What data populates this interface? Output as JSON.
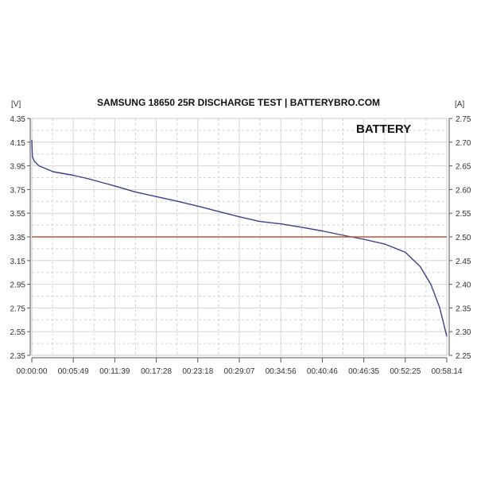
{
  "chart_data": {
    "type": "line",
    "title": "SAMSUNG 18650 25R DISCHARGE TEST | BATTERYBRO.COM",
    "ylabel_left": "[V]",
    "ylabel_right": "[A]",
    "legend": {
      "label": "BATTERY",
      "placement": "top-right"
    },
    "grid": true,
    "x_ticks": [
      "00:00:00",
      "00:05:49",
      "00:11:39",
      "00:17:28",
      "00:23:18",
      "00:29:07",
      "00:34:56",
      "00:40:46",
      "00:46:35",
      "00:52:25",
      "00:58:14"
    ],
    "y_left_ticks": [
      "4.35",
      "4.15",
      "3.95",
      "3.75",
      "3.55",
      "3.35",
      "3.15",
      "2.95",
      "2.75",
      "2.55",
      "2.35"
    ],
    "y_right_ticks": [
      "2.75",
      "2.70",
      "2.65",
      "2.60",
      "2.55",
      "2.50",
      "2.45",
      "2.40",
      "2.35",
      "2.30",
      "2.25"
    ],
    "ylim_left": [
      2.35,
      4.35
    ],
    "ylim_right": [
      2.25,
      2.75
    ],
    "xlim": [
      "00:00:00",
      "00:58:14"
    ],
    "series": [
      {
        "axis": "left",
        "color": "#3b3f8c",
        "x": [
          "00:00:00",
          "00:00:05",
          "00:00:20",
          "00:01:00",
          "00:03:00",
          "00:05:49",
          "00:08:00",
          "00:11:39",
          "00:14:30",
          "00:17:28",
          "00:20:30",
          "00:23:18",
          "00:26:30",
          "00:29:07",
          "00:32:00",
          "00:34:56",
          "00:38:00",
          "00:40:46",
          "00:44:00",
          "00:46:35",
          "00:49:30",
          "00:52:25",
          "00:54:30",
          "00:56:00",
          "00:57:15",
          "00:58:14"
        ],
        "y": [
          4.17,
          4.03,
          3.99,
          3.95,
          3.9,
          3.87,
          3.84,
          3.78,
          3.73,
          3.69,
          3.65,
          3.61,
          3.56,
          3.52,
          3.48,
          3.46,
          3.43,
          3.4,
          3.36,
          3.33,
          3.29,
          3.22,
          3.1,
          2.95,
          2.75,
          2.51
        ]
      },
      {
        "axis": "right",
        "color": "#b5583a",
        "x": [
          "00:00:00",
          "00:58:14"
        ],
        "y": [
          2.5,
          2.5
        ]
      }
    ]
  }
}
